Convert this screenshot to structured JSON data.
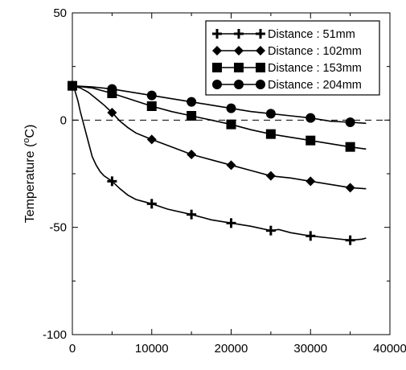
{
  "chart_data": {
    "type": "line",
    "title": "",
    "xlabel": "",
    "ylabel": "Temperature (oC)",
    "ylabel_parts": {
      "before": "Temperature (",
      "sup": "o",
      "after": "C)"
    },
    "xlim": [
      0,
      40000
    ],
    "ylim": [
      -100,
      50
    ],
    "x_ticks": [
      0,
      10000,
      20000,
      30000,
      40000
    ],
    "y_ticks": [
      50,
      0,
      -50,
      -100
    ],
    "x_tick_labels": [
      "0",
      "10000",
      "20000",
      "30000",
      "40000"
    ],
    "y_tick_labels": [
      "50",
      "0",
      "-50",
      "-100"
    ],
    "reference_line": {
      "y": 0,
      "style": "dashed"
    },
    "grid": false,
    "legend_position": "top-right",
    "series": [
      {
        "name": "Distance : 51mm",
        "marker": "plus",
        "x": [
          0,
          300,
          700,
          1000,
          1500,
          2000,
          2500,
          3000,
          3500,
          4000,
          5000,
          6000,
          7000,
          8000,
          9000,
          10000,
          12000,
          15000,
          17500,
          20000,
          22500,
          25000,
          26000,
          27500,
          30000,
          32500,
          35000,
          36500,
          37000
        ],
        "y": [
          16,
          14,
          9,
          4,
          -3,
          -10,
          -17,
          -21,
          -24,
          -26,
          -28.5,
          -32,
          -35,
          -37,
          -38,
          -39,
          -41.5,
          -44,
          -46.5,
          -48,
          -49.5,
          -51.5,
          -51,
          -52.5,
          -54,
          -55,
          -56,
          -55.5,
          -55
        ],
        "marker_x": [
          0,
          5000,
          10000,
          15000,
          20000,
          25000,
          30000,
          35000
        ],
        "marker_y": [
          16,
          -28.5,
          -39,
          -44,
          -48,
          -51.5,
          -54,
          -56
        ]
      },
      {
        "name": "Distance : 102mm",
        "marker": "diamond",
        "x": [
          0,
          1000,
          2000,
          3000,
          4000,
          5000,
          6000,
          7000,
          8000,
          9000,
          10000,
          12500,
          15000,
          17500,
          20000,
          22500,
          25000,
          27500,
          30000,
          32500,
          35000,
          37000
        ],
        "y": [
          16,
          15,
          13,
          10,
          7,
          3.5,
          -0.5,
          -3.5,
          -6,
          -7.5,
          -9,
          -12.5,
          -16,
          -18.5,
          -21,
          -23.5,
          -26,
          -27,
          -28.5,
          -30,
          -31.5,
          -32
        ],
        "marker_x": [
          0,
          5000,
          10000,
          15000,
          20000,
          25000,
          30000,
          35000
        ],
        "marker_y": [
          16,
          3.5,
          -9,
          -16,
          -21,
          -26,
          -28.5,
          -31.5
        ]
      },
      {
        "name": "Distance : 153mm",
        "marker": "square",
        "x": [
          0,
          2500,
          5000,
          7500,
          10000,
          12500,
          15000,
          17500,
          20000,
          22500,
          25000,
          27500,
          30000,
          32500,
          35000,
          37000
        ],
        "y": [
          16,
          15,
          12.5,
          9.5,
          6.5,
          4,
          2,
          0,
          -2,
          -4.5,
          -6.5,
          -8,
          -9.5,
          -11,
          -12.5,
          -13.5
        ],
        "marker_x": [
          0,
          5000,
          10000,
          15000,
          20000,
          25000,
          30000,
          35000
        ],
        "marker_y": [
          16,
          12.5,
          6.5,
          2,
          -2,
          -6.5,
          -9.5,
          -12.5
        ]
      },
      {
        "name": "Distance : 204mm",
        "marker": "circle",
        "x": [
          0,
          2500,
          5000,
          7500,
          10000,
          12500,
          15000,
          17500,
          20000,
          22500,
          25000,
          27500,
          30000,
          32500,
          35000,
          37000
        ],
        "y": [
          16,
          15.5,
          14.5,
          13,
          11.5,
          10,
          8.5,
          7,
          5.5,
          4,
          3,
          2,
          1,
          -0.5,
          -1,
          -1.5
        ],
        "marker_x": [
          0,
          5000,
          10000,
          15000,
          20000,
          25000,
          30000,
          35000
        ],
        "marker_y": [
          16,
          14.5,
          11.5,
          8.5,
          5.5,
          3,
          1,
          -1
        ]
      }
    ]
  }
}
